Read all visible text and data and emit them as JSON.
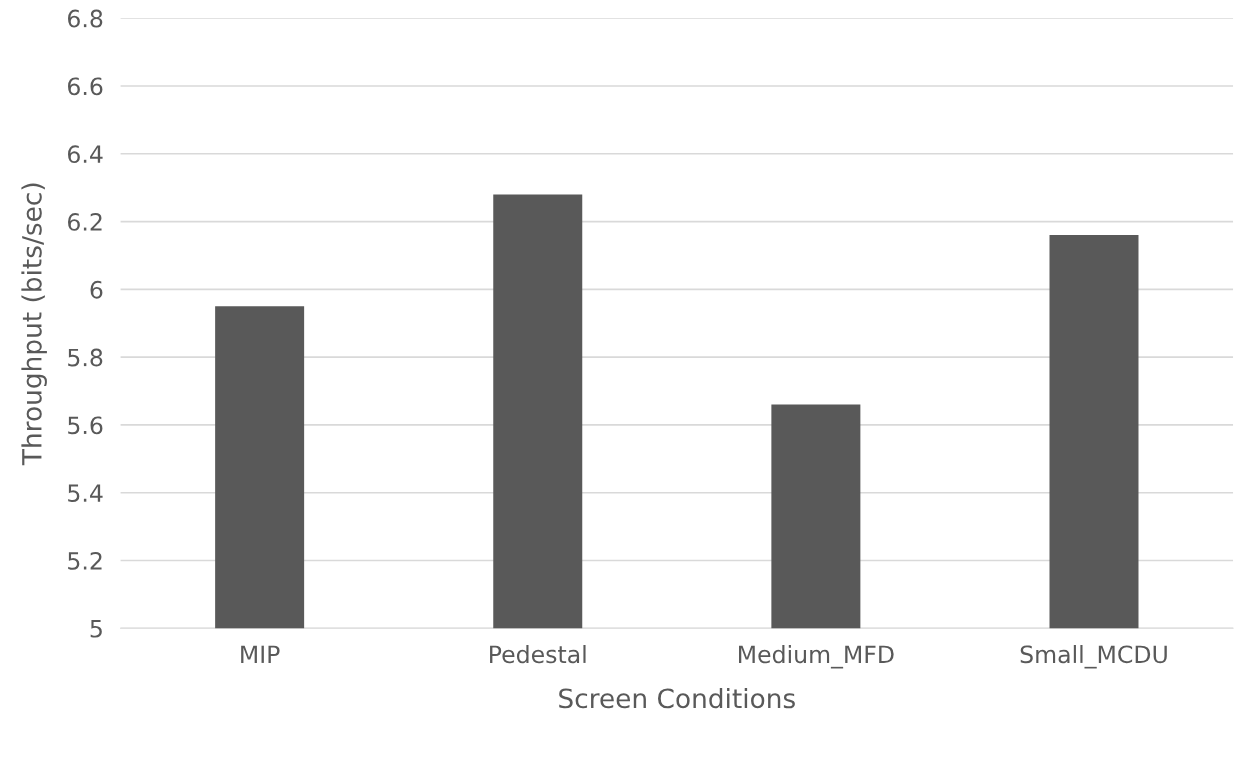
{
  "chart_data": {
    "type": "bar",
    "xlabel": "Screen Conditions",
    "ylabel": "Throughput (bits/sec)",
    "categories": [
      "MIP",
      "Pedestal",
      "Medium_MFD",
      "Small_MCDU"
    ],
    "values": [
      5.95,
      6.28,
      5.66,
      6.16
    ],
    "color": "#595959",
    "ylim": [
      5,
      6.8
    ],
    "yticks": [
      5,
      5.2,
      5.4,
      5.6,
      5.8,
      6,
      6.2,
      6.4,
      6.6,
      6.8
    ],
    "grid": "y"
  }
}
